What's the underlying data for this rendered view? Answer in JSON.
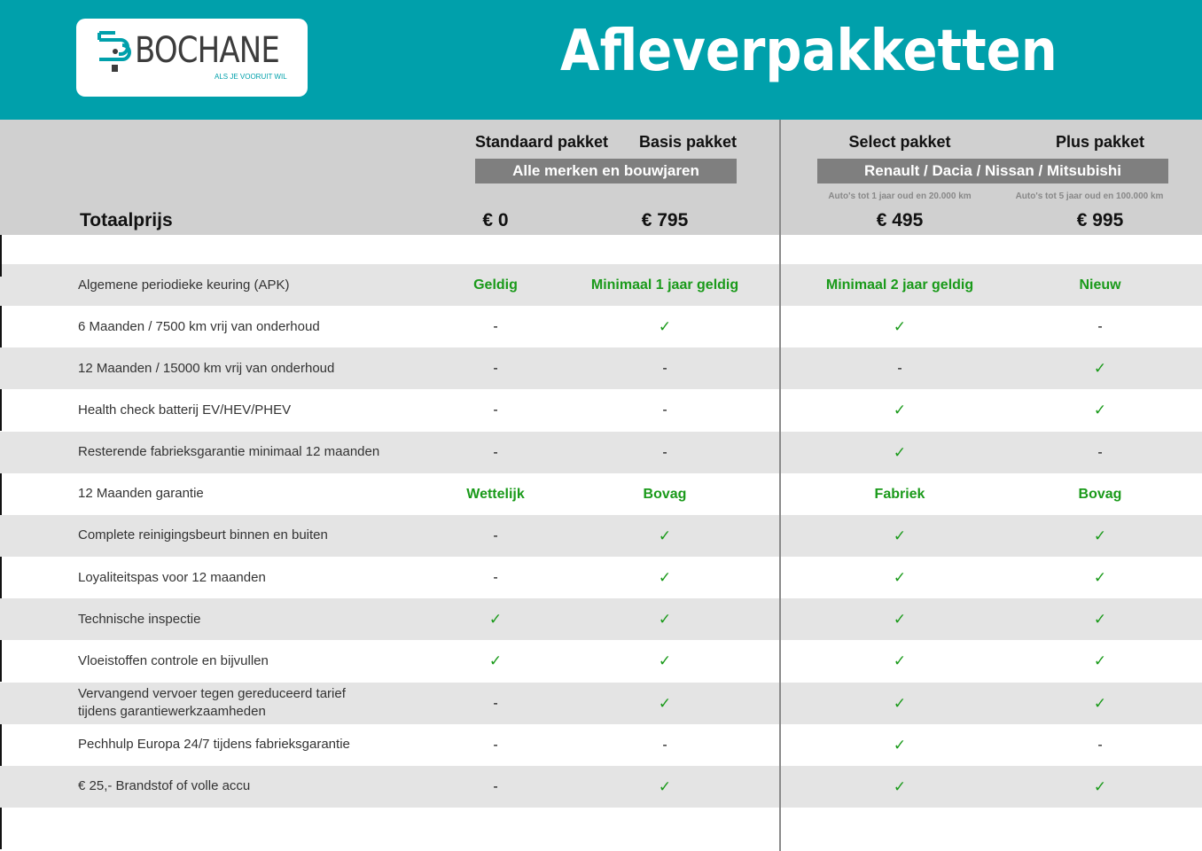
{
  "header": {
    "brand": "BOCHANE",
    "tagline": "ALS JE VOORUIT WIL",
    "title": "Afleverpakketten",
    "accent": "#00a0ab"
  },
  "packages": [
    {
      "name": "Standaard pakket",
      "price": "€ 0",
      "note": ""
    },
    {
      "name": "Basis pakket",
      "price": "€ 795",
      "note": ""
    },
    {
      "name": "Select pakket",
      "price": "€ 495",
      "note": "Auto's tot 1 jaar oud en 20.000 km"
    },
    {
      "name": "Plus pakket",
      "price": "€ 995",
      "note": "Auto's tot 5 jaar oud en 100.000 km"
    }
  ],
  "bands": {
    "left": "Alle merken en bouwjaren",
    "right": "Renault / Dacia / Nissan / Mitsubishi"
  },
  "total_label": "Totaalprijs",
  "rows": [
    {
      "label": "Algemene periodieke keuring (APK)",
      "values": [
        "Geldig",
        "Minimaal 1 jaar geldig",
        "Minimaal 2 jaar geldig",
        "Nieuw"
      ]
    },
    {
      "label": "6 Maanden / 7500 km vrij van onderhoud",
      "values": [
        "-",
        "✓",
        "✓",
        "-"
      ]
    },
    {
      "label": "12 Maanden / 15000 km vrij van onderhoud",
      "values": [
        "-",
        "-",
        "-",
        "✓"
      ]
    },
    {
      "label": "Health check batterij EV/HEV/PHEV",
      "values": [
        "-",
        "-",
        "✓",
        "✓"
      ]
    },
    {
      "label": "Resterende fabrieksgarantie minimaal 12 maanden",
      "values": [
        "-",
        "-",
        "✓",
        "-"
      ]
    },
    {
      "label": "12 Maanden  garantie",
      "values": [
        "Wettelijk",
        "Bovag",
        "Fabriek",
        "Bovag"
      ]
    },
    {
      "label": "Complete reinigingsbeurt binnen en buiten",
      "values": [
        "-",
        "✓",
        "✓",
        "✓"
      ]
    },
    {
      "label": "Loyaliteitspas voor 12 maanden",
      "values": [
        "-",
        "✓",
        "✓",
        "✓"
      ]
    },
    {
      "label": "Technische inspectie",
      "values": [
        "✓",
        "✓",
        "✓",
        "✓"
      ]
    },
    {
      "label": "Vloeistoffen controle en bijvullen",
      "values": [
        "✓",
        "✓",
        "✓",
        "✓"
      ]
    },
    {
      "label": "Vervangend vervoer tegen gereduceerd tarief tijdens garantiewerkzaamheden",
      "values": [
        "-",
        "✓",
        "✓",
        "✓"
      ]
    },
    {
      "label": "Pechhulp Europa 24/7 tijdens fabrieksgarantie",
      "values": [
        "-",
        "-",
        "✓",
        "-"
      ]
    },
    {
      "label": "€ 25,- Brandstof of  volle accu",
      "values": [
        "-",
        "✓",
        "✓",
        "✓"
      ]
    }
  ]
}
